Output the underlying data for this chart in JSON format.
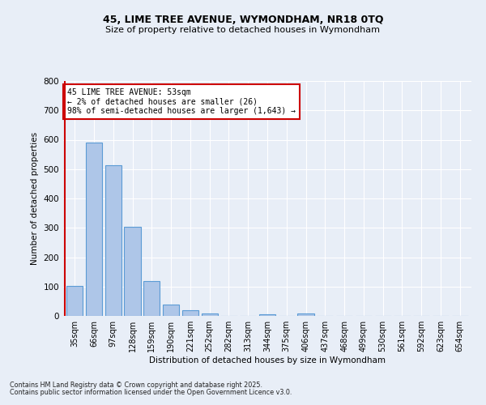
{
  "title1": "45, LIME TREE AVENUE, WYMONDHAM, NR18 0TQ",
  "title2": "Size of property relative to detached houses in Wymondham",
  "xlabel": "Distribution of detached houses by size in Wymondham",
  "ylabel": "Number of detached properties",
  "bar_labels": [
    "35sqm",
    "66sqm",
    "97sqm",
    "128sqm",
    "159sqm",
    "190sqm",
    "221sqm",
    "252sqm",
    "282sqm",
    "313sqm",
    "344sqm",
    "375sqm",
    "406sqm",
    "437sqm",
    "468sqm",
    "499sqm",
    "530sqm",
    "561sqm",
    "592sqm",
    "623sqm",
    "654sqm"
  ],
  "bar_values": [
    101,
    590,
    512,
    304,
    119,
    38,
    18,
    8,
    0,
    0,
    5,
    0,
    8,
    0,
    0,
    0,
    0,
    0,
    0,
    0,
    0
  ],
  "bar_color": "#aec6e8",
  "bar_edge_color": "#5b9bd5",
  "ylim": [
    0,
    800
  ],
  "yticks": [
    0,
    100,
    200,
    300,
    400,
    500,
    600,
    700,
    800
  ],
  "vline_color": "#cc0000",
  "annotation_text": "45 LIME TREE AVENUE: 53sqm\n← 2% of detached houses are smaller (26)\n98% of semi-detached houses are larger (1,643) →",
  "annotation_box_color": "#ffffff",
  "annotation_box_edge": "#cc0000",
  "footer1": "Contains HM Land Registry data © Crown copyright and database right 2025.",
  "footer2": "Contains public sector information licensed under the Open Government Licence v3.0.",
  "bg_color": "#e8eef7",
  "grid_color": "#ffffff"
}
